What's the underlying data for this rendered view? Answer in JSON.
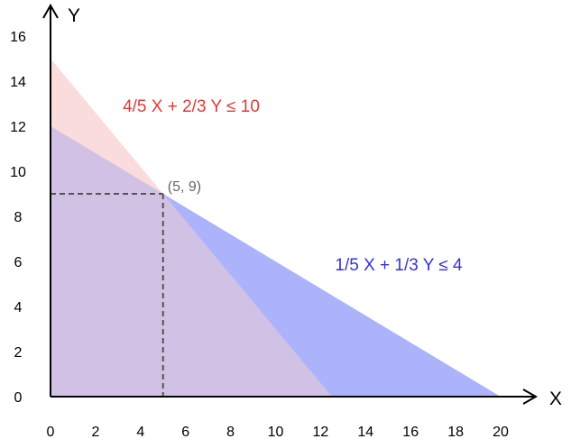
{
  "chart_data": {
    "type": "area",
    "xlabel": "X",
    "ylabel": "Y",
    "xlim": [
      0,
      20
    ],
    "ylim": [
      0,
      16
    ],
    "xticks": [
      0,
      2,
      4,
      6,
      8,
      10,
      12,
      14,
      16,
      18,
      20
    ],
    "yticks": [
      0,
      2,
      4,
      6,
      8,
      10,
      12,
      14,
      16
    ],
    "grid": false,
    "series": [
      {
        "name": "4/5 X + 2/3 Y ≤ 10",
        "points": [
          [
            0,
            0
          ],
          [
            0,
            15
          ],
          [
            12.5,
            0
          ]
        ],
        "color": "#e03a3a",
        "fill": "#fbdcdc"
      },
      {
        "name": "1/5 X + 1/3 Y ≤ 4",
        "points": [
          [
            0,
            0
          ],
          [
            0,
            12
          ],
          [
            20,
            0
          ]
        ],
        "color": "#3333dd",
        "fill": "#adb3fb"
      }
    ],
    "overlap_fill": "#d1c2e5",
    "annotations": [
      {
        "label": "(5, 9)",
        "point": [
          5,
          9
        ],
        "guide_lines": "dashed",
        "color": "#666666"
      }
    ]
  }
}
